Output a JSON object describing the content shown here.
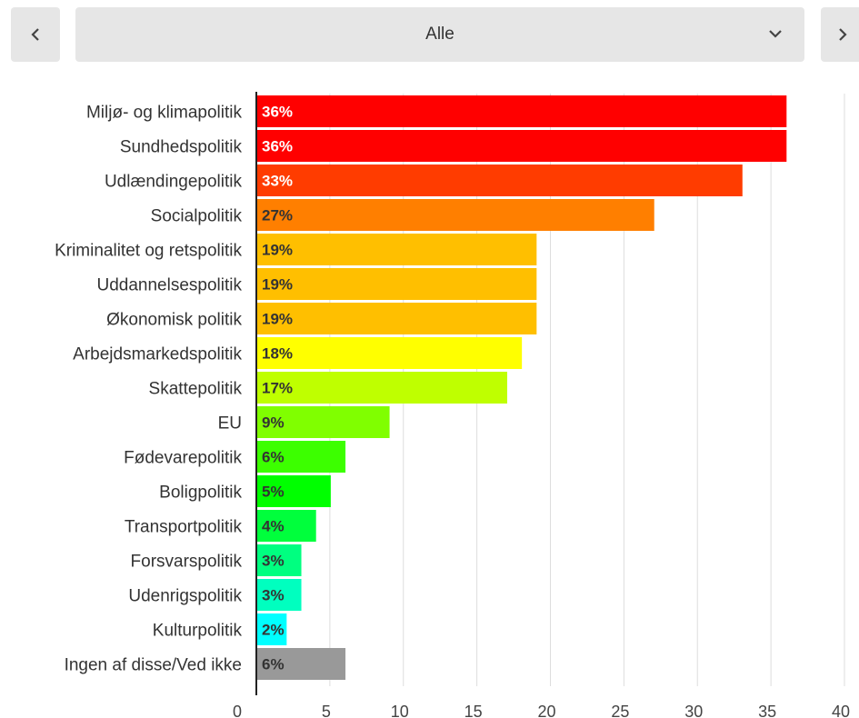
{
  "filter": {
    "selected": "Alle",
    "prev_icon": "chevron-left-icon",
    "next_icon": "chevron-right-icon",
    "dropdown_icon": "chevron-down-icon"
  },
  "chart_data": {
    "type": "bar",
    "orientation": "horizontal",
    "categories": [
      "Miljø- og klimapolitik",
      "Sundhedspolitik",
      "Udlændingepolitik",
      "Socialpolitik",
      "Kriminalitet og retspolitik",
      "Uddannelsespolitik",
      "Økonomisk politik",
      "Arbejdsmarkedspolitik",
      "Skattepolitik",
      "EU",
      "Fødevarepolitik",
      "Boligpolitik",
      "Transportpolitik",
      "Forsvarspolitik",
      "Udenrigspolitik",
      "Kulturpolitik",
      "Ingen af disse/Ved ikke"
    ],
    "values": [
      36,
      36,
      33,
      27,
      19,
      19,
      19,
      18,
      17,
      9,
      6,
      5,
      4,
      3,
      3,
      2,
      6
    ],
    "data_labels": [
      "36%",
      "36%",
      "33%",
      "27%",
      "19%",
      "19%",
      "19%",
      "18%",
      "17%",
      "9%",
      "6%",
      "5%",
      "4%",
      "3%",
      "3%",
      "2%",
      "6%"
    ],
    "colors": [
      "#ff0000",
      "#ff0000",
      "#ff3c00",
      "#ff7f00",
      "#ffbf00",
      "#ffbf00",
      "#ffbf00",
      "#ffff00",
      "#bfff00",
      "#80ff00",
      "#3cff00",
      "#00ff00",
      "#00ff3c",
      "#00ff80",
      "#00ffbf",
      "#00ffff",
      "#999999"
    ],
    "label_colors": [
      "#ffffff",
      "#ffffff",
      "#ffffff",
      "#333333",
      "#333333",
      "#333333",
      "#333333",
      "#333333",
      "#333333",
      "#333333",
      "#333333",
      "#333333",
      "#333333",
      "#333333",
      "#333333",
      "#333333",
      "#333333"
    ],
    "xlim": [
      0,
      40
    ],
    "xticks": [
      0,
      5,
      10,
      15,
      20,
      25,
      30,
      35,
      40
    ],
    "xlabel": "",
    "ylabel": "",
    "grid": true
  }
}
